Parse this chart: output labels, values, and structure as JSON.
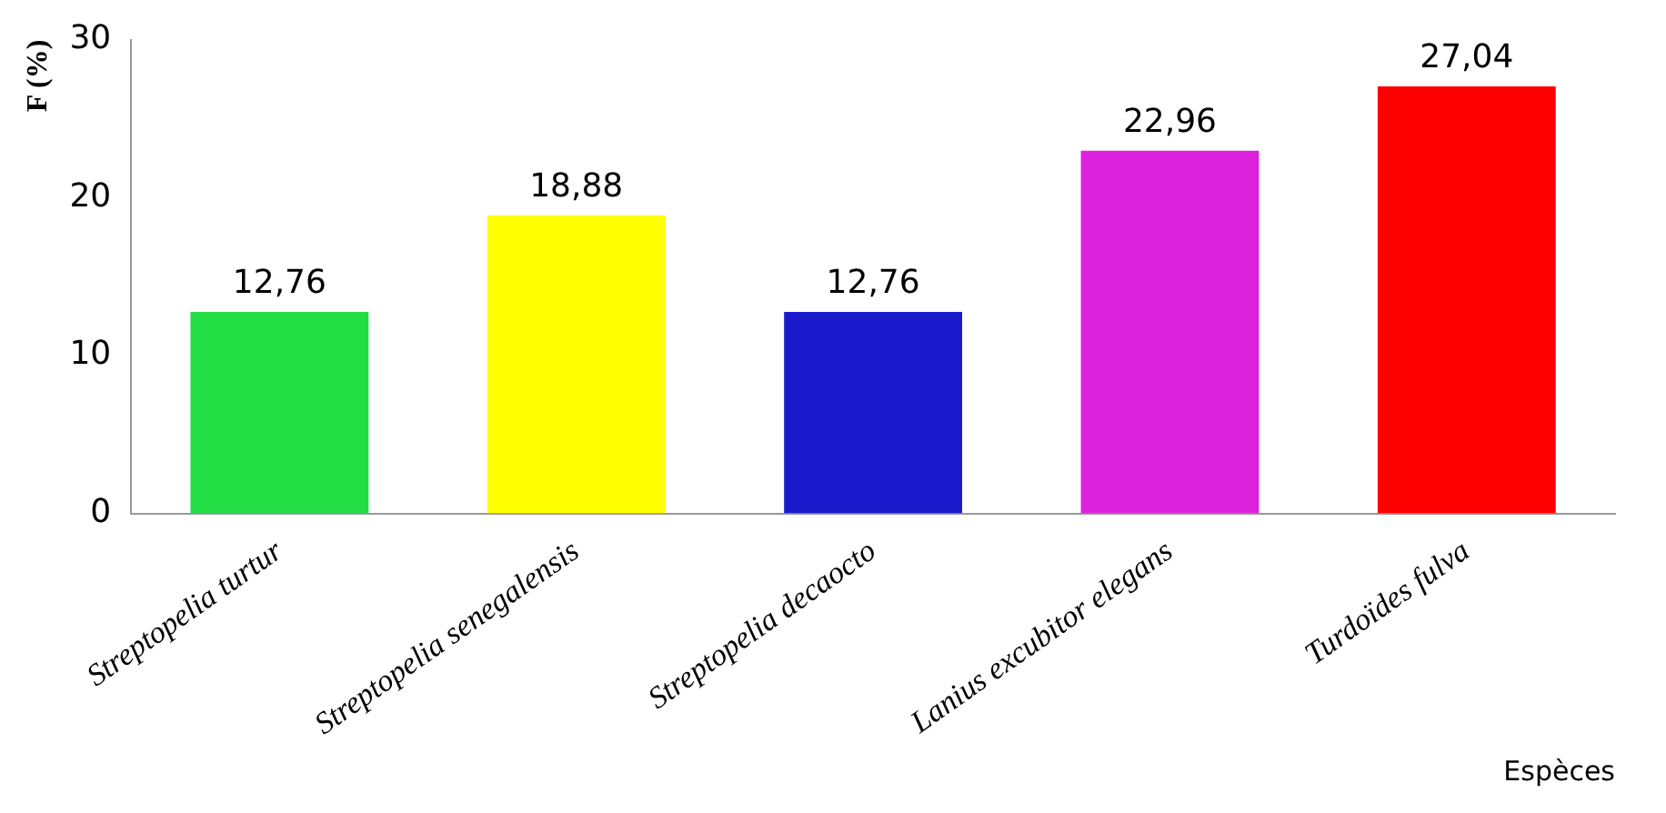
{
  "chart_data": {
    "type": "bar",
    "ylabel": "F (%)",
    "xlabel": "Espèces",
    "categories": [
      "Streptopelia turtur",
      "Streptopelia senegalensis",
      "Streptopelia decaocto",
      "Lanius excubitor elegans",
      "Turdoïdes fulva"
    ],
    "values": [
      12.76,
      18.88,
      12.76,
      22.96,
      27.04
    ],
    "colors": [
      "#22dd44",
      "#ffff00",
      "#1a1acc",
      "#dd22dd",
      "#ff0000"
    ],
    "value_labels": [
      "12,76",
      "18,88",
      "12,76",
      "22,96",
      "27,04"
    ],
    "ylim": [
      0,
      30
    ],
    "yticks": [
      0,
      10,
      20,
      30
    ],
    "grid": false,
    "legend": false
  }
}
